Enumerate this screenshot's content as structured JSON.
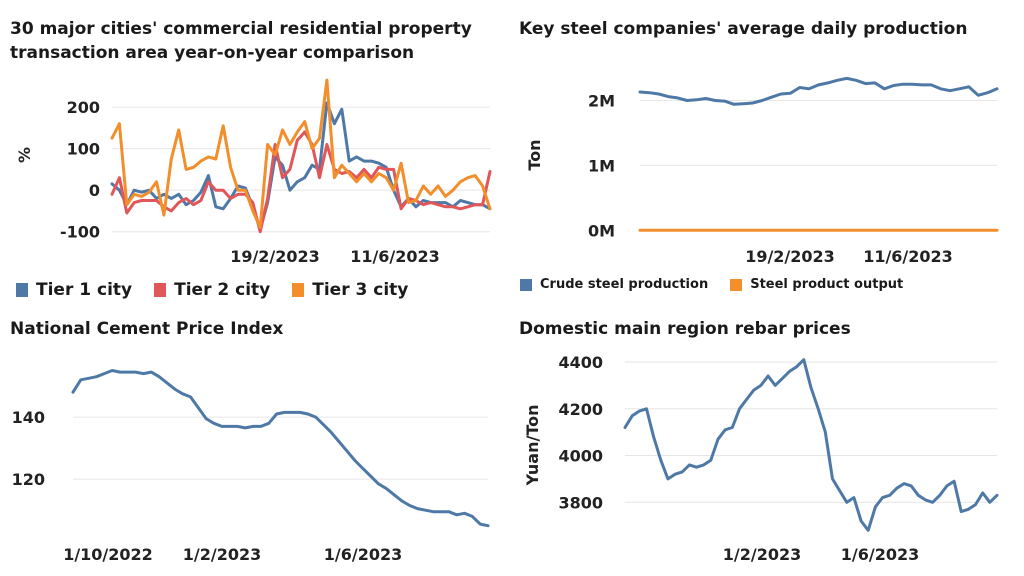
{
  "chart_data": [
    {
      "id": "property",
      "type": "line",
      "title": "30 major cities' commercial residential property transaction area year-on-year comparison",
      "title_lines": [
        "30 major cities' commercial residential property",
        "transaction area year-on-year comparison"
      ],
      "ylabel": "%",
      "ylim": [
        -120,
        270
      ],
      "yticks": [
        -100,
        0,
        100,
        200
      ],
      "xtick_labels": [
        "19/2/2023",
        "11/6/2023"
      ],
      "legend_position": "bottom",
      "series": [
        {
          "name": "Tier 1 city",
          "color": "#4e79a7",
          "values": [
            15,
            0,
            -35,
            0,
            -5,
            0,
            -20,
            -10,
            -20,
            -10,
            -35,
            -25,
            -5,
            35,
            -40,
            -45,
            -20,
            10,
            5,
            -40,
            -95,
            -30,
            80,
            60,
            0,
            20,
            30,
            60,
            50,
            210,
            160,
            195,
            70,
            80,
            70,
            70,
            65,
            55,
            0,
            -40,
            -20,
            -40,
            -25,
            -30,
            -30,
            -30,
            -40,
            -25,
            -30,
            -35,
            -35,
            -45
          ]
        },
        {
          "name": "Tier 2 city",
          "color": "#e15759",
          "values": [
            -10,
            30,
            -55,
            -30,
            -25,
            -25,
            -25,
            -40,
            -50,
            -30,
            -20,
            -35,
            -25,
            20,
            0,
            0,
            -20,
            -10,
            -10,
            -30,
            -100,
            -20,
            110,
            30,
            50,
            120,
            140,
            110,
            30,
            110,
            50,
            40,
            45,
            30,
            50,
            30,
            55,
            50,
            50,
            -45,
            -20,
            -25,
            -35,
            -30,
            -35,
            -40,
            -40,
            -45,
            -40,
            -35,
            -35,
            45
          ]
        },
        {
          "name": "Tier 3 city",
          "color": "#f28e2b",
          "values": [
            125,
            160,
            -35,
            -10,
            -15,
            -5,
            20,
            -60,
            75,
            145,
            50,
            55,
            70,
            80,
            75,
            155,
            55,
            0,
            0,
            -50,
            -90,
            110,
            85,
            145,
            110,
            140,
            165,
            100,
            125,
            265,
            30,
            60,
            40,
            20,
            40,
            20,
            40,
            30,
            0,
            65,
            -30,
            -25,
            10,
            -10,
            10,
            -15,
            0,
            20,
            30,
            35,
            10,
            -45
          ]
        }
      ]
    },
    {
      "id": "steel",
      "type": "line",
      "title": "Key steel companies' average daily production",
      "ylabel": "Ton",
      "ylim": [
        -150000,
        2500000
      ],
      "ytick_values": [
        0,
        1000000,
        2000000
      ],
      "ytick_labels": [
        "0M",
        "1M",
        "2M"
      ],
      "xtick_labels": [
        "19/2/2023",
        "11/6/2023"
      ],
      "legend_position": "bottom",
      "series": [
        {
          "name": "Crude steel production",
          "color": "#4e79a7",
          "values": [
            2130000,
            2120000,
            2100000,
            2060000,
            2040000,
            2000000,
            2010000,
            2030000,
            2000000,
            1990000,
            1940000,
            1950000,
            1960000,
            2000000,
            2050000,
            2100000,
            2110000,
            2200000,
            2180000,
            2240000,
            2270000,
            2310000,
            2340000,
            2310000,
            2260000,
            2270000,
            2180000,
            2230000,
            2250000,
            2250000,
            2240000,
            2240000,
            2180000,
            2150000,
            2180000,
            2210000,
            2080000,
            2120000,
            2180000
          ]
        },
        {
          "name": "Steel product output",
          "color": "#f28e2b",
          "values": [
            0,
            0,
            0,
            0,
            0,
            0,
            0,
            0,
            0,
            0,
            0,
            0,
            0,
            0,
            0,
            0,
            0,
            0,
            0,
            0,
            0,
            0,
            0,
            0,
            0,
            0,
            0,
            0,
            0,
            0,
            0,
            0,
            0,
            0,
            0,
            0,
            0,
            0,
            0
          ]
        }
      ]
    },
    {
      "id": "cement",
      "type": "line",
      "title": "National Cement Price Index",
      "ylim": [
        102,
        160
      ],
      "yticks": [
        120,
        140
      ],
      "xtick_labels": [
        "1/10/2022",
        "1/2/2023",
        "1/6/2023"
      ],
      "series": [
        {
          "name": "",
          "color": "#4e79a7",
          "values": [
            148,
            152,
            152.5,
            153,
            154,
            155,
            154.5,
            154.5,
            154.5,
            154,
            154.5,
            153,
            151,
            149,
            147.5,
            146.5,
            143,
            139.5,
            138,
            137,
            137,
            137,
            136.5,
            137,
            137,
            138,
            141,
            141.5,
            141.5,
            141.5,
            141,
            140,
            137.5,
            135,
            132,
            129,
            126,
            123.5,
            121,
            118.5,
            117,
            115,
            113,
            111.5,
            110.5,
            110,
            109.5,
            109.5,
            109.5,
            108.5,
            109,
            108,
            105.5,
            105
          ]
        }
      ]
    },
    {
      "id": "rebar",
      "type": "line",
      "title": "Domestic main region rebar prices",
      "ylabel": "Yuan/Ton",
      "ylim": [
        3660,
        4430
      ],
      "yticks": [
        3800,
        4000,
        4200,
        4400
      ],
      "xtick_labels": [
        "1/2/2023",
        "1/6/2023"
      ],
      "series": [
        {
          "name": "",
          "color": "#4e79a7",
          "values": [
            4120,
            4170,
            4190,
            4200,
            4080,
            3980,
            3900,
            3920,
            3930,
            3960,
            3950,
            3960,
            3980,
            4070,
            4110,
            4120,
            4200,
            4240,
            4280,
            4300,
            4340,
            4300,
            4330,
            4360,
            4380,
            4410,
            4290,
            4200,
            4100,
            3900,
            3850,
            3800,
            3820,
            3720,
            3680,
            3780,
            3820,
            3830,
            3860,
            3880,
            3870,
            3830,
            3810,
            3800,
            3830,
            3870,
            3890,
            3760,
            3770,
            3790,
            3840,
            3800,
            3830
          ]
        }
      ]
    }
  ]
}
